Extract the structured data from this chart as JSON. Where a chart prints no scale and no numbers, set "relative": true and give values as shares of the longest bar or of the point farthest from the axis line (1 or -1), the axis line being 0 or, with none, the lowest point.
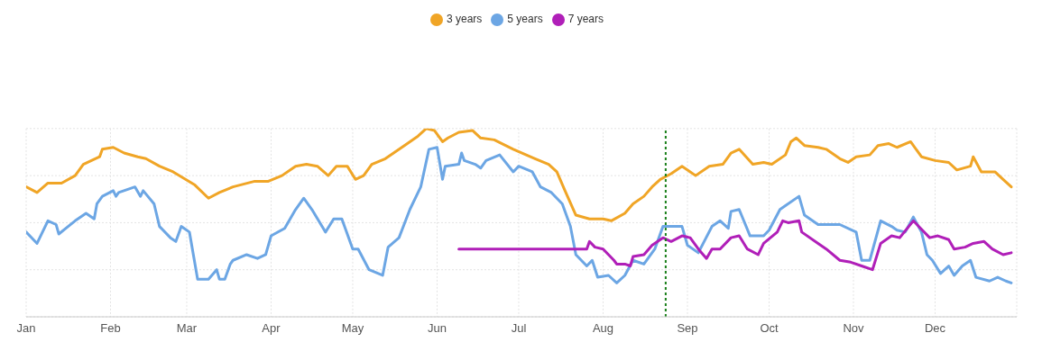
{
  "chart_data": {
    "type": "line",
    "relative": true,
    "grid": true,
    "legend": "top",
    "marker": "none",
    "line_style": "solid",
    "xlim": [
      "--01-01",
      "--12-31"
    ],
    "xticks": [
      {
        "value": "--01-01",
        "label": "Jan"
      },
      {
        "value": "--02-01",
        "label": "Feb"
      },
      {
        "value": "--03-01",
        "label": "Mar"
      },
      {
        "value": "--04-01",
        "label": "Apr"
      },
      {
        "value": "--05-01",
        "label": "May"
      },
      {
        "value": "--06-01",
        "label": "Jun"
      },
      {
        "value": "--07-01",
        "label": "Jul"
      },
      {
        "value": "--08-01",
        "label": "Aug"
      },
      {
        "value": "--09-01",
        "label": "Sep"
      },
      {
        "value": "--10-01",
        "label": "Oct"
      },
      {
        "value": "--11-01",
        "label": "Nov"
      },
      {
        "value": "--12-01",
        "label": "Dec"
      }
    ],
    "ref_lines": [
      {
        "axis": "x",
        "value": "--08-24",
        "label": null,
        "color": "#1a7f1a",
        "line_style": "dotted"
      }
    ],
    "series": [
      {
        "name": "3 years",
        "color": "#f0a526",
        "x": [
          "--01-01",
          "--01-05",
          "--01-09",
          "--01-14",
          "--01-19",
          "--01-22",
          "--01-28",
          "--01-29",
          "--02-02",
          "--02-06",
          "--02-11",
          "--02-14",
          "--02-19",
          "--02-24",
          "--03-04",
          "--03-09",
          "--03-13",
          "--03-18",
          "--03-26",
          "--03-31",
          "--04-05",
          "--04-10",
          "--04-14",
          "--04-18",
          "--04-22",
          "--04-25",
          "--04-29",
          "--05-02",
          "--05-05",
          "--05-08",
          "--05-13",
          "--05-20",
          "--05-25",
          "--05-28",
          "--05-31",
          "--06-03",
          "--06-05",
          "--06-09",
          "--06-14",
          "--06-17",
          "--06-22",
          "--06-29",
          "--07-07",
          "--07-12",
          "--07-15",
          "--07-18",
          "--07-22",
          "--07-27",
          "--08-01",
          "--08-04",
          "--08-09",
          "--08-12",
          "--08-16",
          "--08-19",
          "--08-22",
          "--08-26",
          "--08-30",
          "--09-04",
          "--09-09",
          "--09-14",
          "--09-17",
          "--09-20",
          "--09-25",
          "--09-29",
          "--10-02",
          "--10-07",
          "--10-09",
          "--10-11",
          "--10-14",
          "--10-19",
          "--10-22",
          "--10-27",
          "--10-30",
          "--11-02",
          "--11-07",
          "--11-10",
          "--11-14",
          "--11-17",
          "--11-22",
          "--11-26",
          "--12-01",
          "--12-06",
          "--12-09",
          "--12-14",
          "--12-15",
          "--12-18",
          "--12-23",
          "--12-26",
          "--12-29"
        ],
        "values": [
          0.69,
          0.66,
          0.71,
          0.71,
          0.75,
          0.81,
          0.85,
          0.89,
          0.9,
          0.87,
          0.85,
          0.84,
          0.8,
          0.77,
          0.7,
          0.63,
          0.66,
          0.69,
          0.72,
          0.72,
          0.75,
          0.8,
          0.81,
          0.8,
          0.75,
          0.8,
          0.8,
          0.73,
          0.75,
          0.81,
          0.84,
          0.91,
          0.96,
          1.0,
          0.99,
          0.93,
          0.95,
          0.98,
          0.99,
          0.95,
          0.94,
          0.89,
          0.84,
          0.81,
          0.77,
          0.67,
          0.54,
          0.52,
          0.52,
          0.51,
          0.55,
          0.6,
          0.64,
          0.69,
          0.73,
          0.76,
          0.8,
          0.75,
          0.8,
          0.81,
          0.87,
          0.89,
          0.81,
          0.82,
          0.81,
          0.86,
          0.93,
          0.95,
          0.91,
          0.9,
          0.89,
          0.84,
          0.82,
          0.85,
          0.86,
          0.91,
          0.92,
          0.9,
          0.93,
          0.85,
          0.83,
          0.82,
          0.78,
          0.8,
          0.85,
          0.77,
          0.77,
          0.73,
          0.69
        ]
      },
      {
        "name": "5 years",
        "color": "#6ca6e4",
        "x": [
          "--01-01",
          "--01-05",
          "--01-09",
          "--01-12",
          "--01-13",
          "--01-19",
          "--01-23",
          "--01-26",
          "--01-27",
          "--01-29",
          "--02-02",
          "--02-03",
          "--02-04",
          "--02-10",
          "--02-12",
          "--02-13",
          "--02-17",
          "--02-19",
          "--02-23",
          "--02-25",
          "--02-27",
          "--03-02",
          "--03-05",
          "--03-09",
          "--03-12",
          "--03-13",
          "--03-15",
          "--03-17",
          "--03-18",
          "--03-23",
          "--03-27",
          "--03-30",
          "--04-01",
          "--04-06",
          "--04-10",
          "--04-13",
          "--04-16",
          "--04-21",
          "--04-24",
          "--04-27",
          "--05-01",
          "--05-03",
          "--05-07",
          "--05-12",
          "--05-14",
          "--05-18",
          "--05-22",
          "--05-26",
          "--05-29",
          "--06-01",
          "--06-03",
          "--06-04",
          "--06-09",
          "--06-10",
          "--06-11",
          "--06-15",
          "--06-17",
          "--06-19",
          "--06-24",
          "--06-29",
          "--07-01",
          "--07-06",
          "--07-09",
          "--07-13",
          "--07-17",
          "--07-20",
          "--07-22",
          "--07-26",
          "--07-28",
          "--07-30",
          "--08-03",
          "--08-06",
          "--08-09",
          "--08-12",
          "--08-16",
          "--08-20",
          "--08-23",
          "--08-30",
          "--09-01",
          "--09-05",
          "--09-10",
          "--09-13",
          "--09-16",
          "--09-17",
          "--09-20",
          "--09-24",
          "--09-29",
          "--10-01",
          "--10-05",
          "--10-07",
          "--10-12",
          "--10-14",
          "--10-19",
          "--10-27",
          "--11-02",
          "--11-04",
          "--11-07",
          "--11-11",
          "--11-15",
          "--11-17",
          "--11-20",
          "--11-23",
          "--11-26",
          "--11-28",
          "--11-30",
          "--12-03",
          "--12-06",
          "--12-08",
          "--12-11",
          "--12-14",
          "--12-16",
          "--12-21",
          "--12-24",
          "--12-27",
          "--12-29"
        ],
        "values": [
          0.45,
          0.39,
          0.51,
          0.49,
          0.44,
          0.51,
          0.55,
          0.52,
          0.6,
          0.64,
          0.67,
          0.64,
          0.66,
          0.69,
          0.64,
          0.67,
          0.6,
          0.48,
          0.42,
          0.4,
          0.48,
          0.45,
          0.2,
          0.2,
          0.25,
          0.2,
          0.2,
          0.28,
          0.3,
          0.33,
          0.31,
          0.33,
          0.43,
          0.47,
          0.57,
          0.63,
          0.57,
          0.45,
          0.52,
          0.52,
          0.36,
          0.36,
          0.25,
          0.22,
          0.37,
          0.42,
          0.57,
          0.69,
          0.89,
          0.9,
          0.73,
          0.8,
          0.81,
          0.87,
          0.83,
          0.81,
          0.79,
          0.83,
          0.86,
          0.77,
          0.8,
          0.77,
          0.69,
          0.66,
          0.6,
          0.48,
          0.33,
          0.27,
          0.3,
          0.21,
          0.22,
          0.18,
          0.22,
          0.3,
          0.28,
          0.36,
          0.48,
          0.48,
          0.38,
          0.34,
          0.48,
          0.51,
          0.47,
          0.56,
          0.57,
          0.43,
          0.43,
          0.46,
          0.57,
          0.59,
          0.64,
          0.54,
          0.49,
          0.49,
          0.45,
          0.3,
          0.3,
          0.51,
          0.48,
          0.46,
          0.45,
          0.53,
          0.45,
          0.33,
          0.3,
          0.23,
          0.27,
          0.22,
          0.27,
          0.3,
          0.21,
          0.19,
          0.21,
          0.19,
          0.18
        ]
      },
      {
        "name": "7 years",
        "color": "#b01fb8",
        "x": [
          "--06-09",
          "--07-26",
          "--07-27",
          "--07-29",
          "--08-01",
          "--08-05",
          "--08-06",
          "--08-09",
          "--08-11",
          "--08-12",
          "--08-16",
          "--08-19",
          "--08-23",
          "--08-26",
          "--08-30",
          "--09-02",
          "--09-05",
          "--09-08",
          "--09-10",
          "--09-13",
          "--09-17",
          "--09-20",
          "--09-23",
          "--09-27",
          "--09-29",
          "--10-04",
          "--10-06",
          "--10-08",
          "--10-12",
          "--10-13",
          "--10-19",
          "--10-22",
          "--10-27",
          "--10-31",
          "--11-04",
          "--11-08",
          "--11-11",
          "--11-15",
          "--11-18",
          "--11-23",
          "--11-29",
          "--12-02",
          "--12-06",
          "--12-08",
          "--12-12",
          "--12-15",
          "--12-19",
          "--12-22",
          "--12-26",
          "--12-29"
        ],
        "values": [
          0.36,
          0.36,
          0.4,
          0.37,
          0.36,
          0.3,
          0.28,
          0.28,
          0.27,
          0.32,
          0.33,
          0.38,
          0.42,
          0.4,
          0.43,
          0.42,
          0.36,
          0.31,
          0.36,
          0.36,
          0.42,
          0.43,
          0.36,
          0.33,
          0.39,
          0.45,
          0.51,
          0.5,
          0.51,
          0.45,
          0.39,
          0.36,
          0.3,
          0.29,
          0.27,
          0.25,
          0.39,
          0.43,
          0.42,
          0.51,
          0.42,
          0.43,
          0.41,
          0.36,
          0.37,
          0.39,
          0.4,
          0.36,
          0.33,
          0.34
        ]
      }
    ]
  }
}
